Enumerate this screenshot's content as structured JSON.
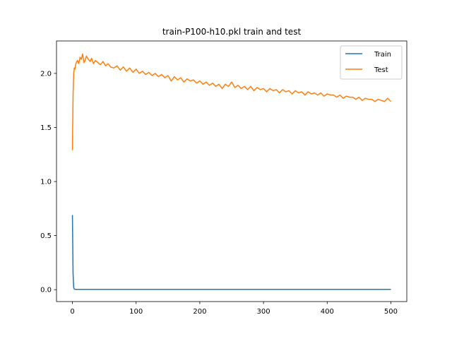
{
  "chart_data": {
    "type": "line",
    "title": "train-P100-h10.pkl train and test",
    "xlabel": "",
    "ylabel": "",
    "xlim": [
      -25,
      525
    ],
    "ylim": [
      -0.11,
      2.3
    ],
    "xticks": [
      0,
      100,
      200,
      300,
      400,
      500
    ],
    "xtick_labels": [
      "0",
      "100",
      "200",
      "300",
      "400",
      "500"
    ],
    "yticks": [
      0.0,
      0.5,
      1.0,
      1.5,
      2.0
    ],
    "ytick_labels": [
      "0.0",
      "0.5",
      "1.0",
      "1.5",
      "2.0"
    ],
    "grid": false,
    "legend": "top-right",
    "series": [
      {
        "name": "Train",
        "color": "#1f77b4",
        "x": [
          0,
          1,
          2,
          3,
          5,
          10,
          50,
          100,
          200,
          300,
          400,
          500
        ],
        "y": [
          0.69,
          0.15,
          0.02,
          0.005,
          0.003,
          0.003,
          0.003,
          0.003,
          0.003,
          0.003,
          0.003,
          0.003
        ]
      },
      {
        "name": "Test",
        "color": "#ff7f0e",
        "x": [
          0,
          1,
          2,
          3,
          4,
          5,
          6,
          8,
          10,
          12,
          14,
          16,
          18,
          20,
          22,
          25,
          28,
          30,
          33,
          36,
          40,
          44,
          48,
          52,
          56,
          60,
          65,
          70,
          75,
          80,
          85,
          90,
          95,
          100,
          105,
          110,
          115,
          120,
          125,
          130,
          135,
          140,
          145,
          150,
          155,
          160,
          165,
          170,
          175,
          180,
          185,
          190,
          195,
          200,
          205,
          210,
          215,
          220,
          225,
          230,
          235,
          240,
          245,
          250,
          255,
          260,
          265,
          270,
          275,
          280,
          285,
          290,
          295,
          300,
          305,
          310,
          315,
          320,
          325,
          330,
          335,
          340,
          345,
          350,
          355,
          360,
          365,
          370,
          375,
          380,
          385,
          390,
          395,
          400,
          405,
          410,
          415,
          420,
          425,
          430,
          435,
          440,
          445,
          450,
          455,
          460,
          465,
          470,
          475,
          480,
          485,
          490,
          495,
          500
        ],
        "y": [
          1.29,
          1.8,
          2.0,
          2.05,
          2.04,
          2.08,
          2.1,
          2.12,
          2.09,
          2.15,
          2.13,
          2.18,
          2.1,
          2.12,
          2.16,
          2.13,
          2.11,
          2.14,
          2.09,
          2.12,
          2.1,
          2.08,
          2.11,
          2.07,
          2.09,
          2.06,
          2.05,
          2.07,
          2.03,
          2.06,
          2.02,
          2.05,
          2.01,
          2.04,
          2.0,
          2.02,
          1.99,
          2.01,
          1.98,
          2.0,
          1.97,
          1.99,
          1.96,
          1.98,
          1.93,
          1.97,
          1.94,
          1.96,
          1.92,
          1.95,
          1.93,
          1.94,
          1.91,
          1.93,
          1.9,
          1.92,
          1.89,
          1.91,
          1.88,
          1.9,
          1.86,
          1.9,
          1.88,
          1.92,
          1.87,
          1.89,
          1.86,
          1.88,
          1.85,
          1.88,
          1.84,
          1.87,
          1.85,
          1.86,
          1.83,
          1.86,
          1.84,
          1.85,
          1.82,
          1.85,
          1.83,
          1.84,
          1.81,
          1.84,
          1.82,
          1.83,
          1.8,
          1.83,
          1.81,
          1.82,
          1.8,
          1.82,
          1.79,
          1.81,
          1.8,
          1.8,
          1.78,
          1.8,
          1.77,
          1.79,
          1.78,
          1.78,
          1.76,
          1.78,
          1.75,
          1.77,
          1.76,
          1.76,
          1.74,
          1.76,
          1.75,
          1.74,
          1.77,
          1.74
        ]
      }
    ]
  }
}
